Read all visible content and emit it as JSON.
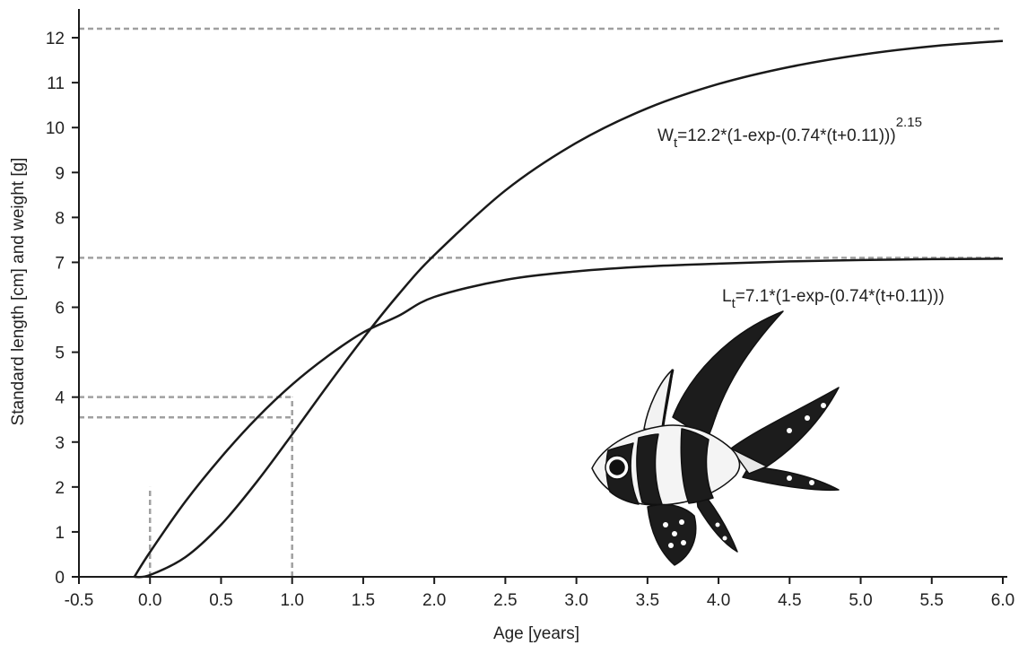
{
  "chart_data": {
    "type": "line",
    "xlabel": "Age [years]",
    "ylabel": "Standard length [cm] and weight [g]",
    "xlim": [
      -0.5,
      6.0
    ],
    "ylim": [
      0,
      12.6
    ],
    "x_ticks": [
      "-0.5",
      "0.0",
      "0.5",
      "1.0",
      "1.5",
      "2.0",
      "2.5",
      "3.0",
      "3.5",
      "4.0",
      "4.5",
      "5.0",
      "5.5",
      "6.0"
    ],
    "y_ticks": [
      "0",
      "1",
      "2",
      "3",
      "4",
      "5",
      "6",
      "7",
      "8",
      "9",
      "10",
      "11",
      "12"
    ],
    "grid": false,
    "series": [
      {
        "key": "weight",
        "label": {
          "main": "W",
          "sub": "t",
          "body": "=12.2*(1-exp-(0.74*(t+0.11)))",
          "sup": "2.15"
        },
        "x": [
          -0.11,
          0.0,
          0.25,
          0.5,
          0.75,
          1.0,
          1.25,
          1.5,
          1.75,
          2.0,
          2.5,
          3.0,
          3.5,
          4.0,
          4.5,
          5.0,
          5.5,
          6.0
        ],
        "y": [
          0.0,
          0.04,
          0.44,
          1.16,
          2.11,
          3.17,
          4.26,
          5.31,
          6.29,
          7.16,
          8.6,
          9.66,
          10.43,
          10.97,
          11.35,
          11.62,
          11.81,
          11.93
        ]
      },
      {
        "key": "length",
        "label": {
          "main": "L",
          "sub": "t",
          "body": "=7.1*(1-exp-(0.74*(t+0.11)))"
        },
        "x": [
          -0.11,
          0.0,
          0.25,
          0.5,
          0.75,
          1.0,
          1.25,
          1.5,
          1.75,
          2.0,
          2.5,
          3.0,
          3.5,
          4.0,
          4.5,
          5.0,
          5.5,
          6.0
        ],
        "y": [
          0.0,
          0.55,
          1.68,
          2.66,
          3.53,
          4.28,
          4.91,
          5.44,
          5.81,
          6.23,
          6.61,
          6.8,
          6.91,
          6.97,
          7.02,
          7.05,
          7.07,
          7.08
        ]
      }
    ],
    "reference_lines": [
      {
        "orientation": "horizontal",
        "value": 12.2,
        "from": -0.5,
        "to": 6.0
      },
      {
        "orientation": "horizontal",
        "value": 7.1,
        "from": -0.5,
        "to": 6.0
      },
      {
        "orientation": "horizontal",
        "value": 4.0,
        "from": -0.5,
        "to": 1.0
      },
      {
        "orientation": "horizontal",
        "value": 3.55,
        "from": -0.5,
        "to": 1.0
      },
      {
        "orientation": "vertical",
        "value": 1.0,
        "from": 0,
        "to": 4.0
      },
      {
        "orientation": "vertical",
        "value": 0.0,
        "from": 0,
        "to": 2.0
      }
    ],
    "colors": {
      "curve": "#1a1a1a",
      "reference": "#a0a0a0",
      "axis": "#1a1a1a"
    },
    "illustration": "banggai-cardinalfish"
  }
}
